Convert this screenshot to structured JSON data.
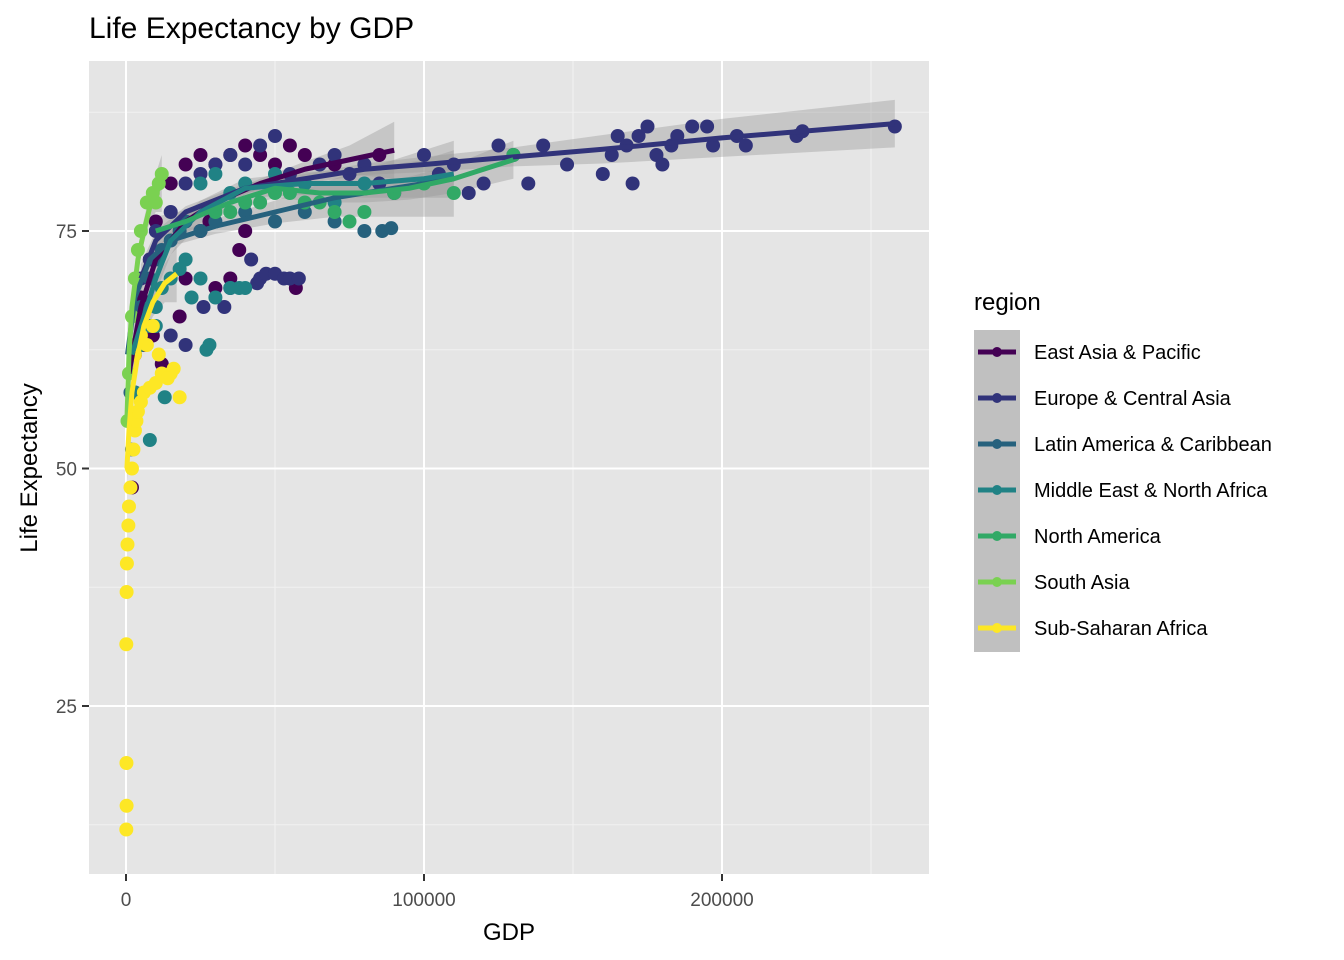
{
  "chart_data": {
    "type": "scatter",
    "title": "Life Expectancy by GDP",
    "xlabel": "GDP",
    "ylabel": "Life Expectancy",
    "xlim": [
      -12000,
      270000
    ],
    "ylim": [
      9,
      92
    ],
    "x_ticks": [
      0,
      100000,
      200000
    ],
    "x_tick_labels": [
      "0",
      "100000",
      "200000"
    ],
    "y_ticks": [
      25,
      50,
      75
    ],
    "y_tick_labels": [
      "25",
      "50",
      "75"
    ],
    "grid": true,
    "legend": {
      "title": "region",
      "placement": "right",
      "entries": [
        "East Asia & Pacific",
        "Europe & Central Asia",
        "Latin America & Caribbean",
        "Middle East & North Africa",
        "North America",
        "South Asia",
        "Sub-Saharan Africa"
      ]
    },
    "series": [
      {
        "name": "East Asia & Pacific",
        "color": "#440154",
        "points": [
          [
            2000,
            55
          ],
          [
            3000,
            62
          ],
          [
            5000,
            68
          ],
          [
            8000,
            72
          ],
          [
            10000,
            76
          ],
          [
            15000,
            80
          ],
          [
            20000,
            82
          ],
          [
            25000,
            83
          ],
          [
            30000,
            82
          ],
          [
            35000,
            83
          ],
          [
            40000,
            84
          ],
          [
            45000,
            83
          ],
          [
            50000,
            82
          ],
          [
            55000,
            84
          ],
          [
            60000,
            83
          ],
          [
            12000,
            61
          ],
          [
            18000,
            66
          ],
          [
            20000,
            70
          ],
          [
            30000,
            69
          ],
          [
            35000,
            70
          ],
          [
            38000,
            73
          ],
          [
            40000,
            75
          ],
          [
            25000,
            75
          ],
          [
            28000,
            76
          ],
          [
            57000,
            69
          ],
          [
            2000,
            48
          ],
          [
            3000,
            58
          ],
          [
            6000,
            63
          ],
          [
            9000,
            64
          ],
          [
            70000,
            82
          ],
          [
            85000,
            83
          ]
        ],
        "smooth": [
          [
            1000,
            60
          ],
          [
            5000,
            67
          ],
          [
            10000,
            72
          ],
          [
            20000,
            76
          ],
          [
            30000,
            78
          ],
          [
            45000,
            80
          ],
          [
            60000,
            81.5
          ],
          [
            75000,
            82.5
          ],
          [
            90000,
            83.5
          ]
        ],
        "band_halfwidth": [
          2,
          1.5,
          1,
          0.6,
          0.5,
          0.5,
          0.8,
          1.5,
          3
        ]
      },
      {
        "name": "Europe & Central Asia",
        "color": "#31337a",
        "points": [
          [
            5000,
            70
          ],
          [
            8000,
            72
          ],
          [
            10000,
            75
          ],
          [
            15000,
            77
          ],
          [
            20000,
            80
          ],
          [
            25000,
            81
          ],
          [
            30000,
            82
          ],
          [
            35000,
            83
          ],
          [
            40000,
            82
          ],
          [
            45000,
            84
          ],
          [
            50000,
            85
          ],
          [
            55000,
            81
          ],
          [
            60000,
            80
          ],
          [
            65000,
            82
          ],
          [
            70000,
            83
          ],
          [
            75000,
            81
          ],
          [
            80000,
            82
          ],
          [
            85000,
            80
          ],
          [
            90000,
            79
          ],
          [
            100000,
            83
          ],
          [
            105000,
            81
          ],
          [
            110000,
            82
          ],
          [
            115000,
            79
          ],
          [
            120000,
            80
          ],
          [
            125000,
            84
          ],
          [
            130000,
            83
          ],
          [
            135000,
            80
          ],
          [
            140000,
            84
          ],
          [
            148000,
            82
          ],
          [
            160000,
            81
          ],
          [
            163000,
            83
          ],
          [
            165000,
            85
          ],
          [
            168000,
            84
          ],
          [
            170000,
            80
          ],
          [
            172000,
            85
          ],
          [
            175000,
            86
          ],
          [
            178000,
            83
          ],
          [
            180000,
            82
          ],
          [
            183000,
            84
          ],
          [
            185000,
            85
          ],
          [
            190000,
            86
          ],
          [
            195000,
            86
          ],
          [
            197000,
            84
          ],
          [
            205000,
            85
          ],
          [
            208000,
            84
          ],
          [
            225000,
            85
          ],
          [
            227000,
            85.5
          ],
          [
            258000,
            86
          ],
          [
            44000,
            69.5
          ],
          [
            45000,
            70
          ],
          [
            47000,
            70.5
          ],
          [
            50000,
            70.5
          ],
          [
            53000,
            70
          ],
          [
            55000,
            70
          ],
          [
            58000,
            70
          ],
          [
            35000,
            69
          ],
          [
            33000,
            67
          ],
          [
            26000,
            67
          ],
          [
            42000,
            72
          ],
          [
            20000,
            63
          ],
          [
            15000,
            64
          ]
        ],
        "smooth": [
          [
            5000,
            70
          ],
          [
            10000,
            74
          ],
          [
            20000,
            77
          ],
          [
            40000,
            79.5
          ],
          [
            60000,
            80.5
          ],
          [
            80000,
            81.5
          ],
          [
            100000,
            82
          ],
          [
            130000,
            82.8
          ],
          [
            160000,
            83.6
          ],
          [
            200000,
            84.8
          ],
          [
            258000,
            86.3
          ]
        ],
        "band_halfwidth": [
          1.5,
          1,
          0.6,
          0.5,
          0.5,
          0.6,
          0.8,
          1,
          1.5,
          2,
          2.5
        ]
      },
      {
        "name": "Latin America & Caribbean",
        "color": "#26617d",
        "points": [
          [
            1500,
            58
          ],
          [
            3000,
            63
          ],
          [
            5000,
            67
          ],
          [
            8000,
            70
          ],
          [
            10000,
            72
          ],
          [
            12000,
            73
          ],
          [
            15000,
            74
          ],
          [
            18000,
            75
          ],
          [
            20000,
            76
          ],
          [
            25000,
            75
          ],
          [
            30000,
            76
          ],
          [
            40000,
            77
          ],
          [
            50000,
            76
          ],
          [
            60000,
            77
          ],
          [
            70000,
            76
          ],
          [
            80000,
            75
          ],
          [
            86000,
            75
          ],
          [
            89000,
            75.3
          ],
          [
            2000,
            52
          ]
        ],
        "smooth": [
          [
            500,
            62
          ],
          [
            3000,
            68
          ],
          [
            8000,
            72
          ],
          [
            15000,
            74
          ],
          [
            30000,
            75.5
          ],
          [
            50000,
            77
          ],
          [
            70000,
            78.5
          ],
          [
            90000,
            79.5
          ],
          [
            110000,
            80.5
          ]
        ],
        "band_halfwidth": [
          2,
          1.2,
          0.8,
          0.6,
          0.8,
          1.2,
          2,
          3,
          4
        ]
      },
      {
        "name": "Middle East & North Africa",
        "color": "#208285",
        "points": [
          [
            3000,
            58
          ],
          [
            5000,
            63
          ],
          [
            8000,
            65
          ],
          [
            10000,
            67
          ],
          [
            12000,
            69
          ],
          [
            15000,
            70
          ],
          [
            18000,
            71
          ],
          [
            20000,
            72
          ],
          [
            22000,
            68
          ],
          [
            25000,
            70
          ],
          [
            28000,
            63
          ],
          [
            27000,
            62.5
          ],
          [
            30000,
            68
          ],
          [
            35000,
            69
          ],
          [
            38000,
            69
          ],
          [
            40000,
            69
          ],
          [
            13000,
            57.5
          ],
          [
            8000,
            53
          ],
          [
            10000,
            65
          ],
          [
            25000,
            80
          ],
          [
            30000,
            81
          ],
          [
            35000,
            79
          ],
          [
            40000,
            80
          ],
          [
            50000,
            81
          ],
          [
            60000,
            80
          ],
          [
            70000,
            78
          ],
          [
            80000,
            80
          ]
        ],
        "smooth": [
          [
            2000,
            62
          ],
          [
            6000,
            66
          ],
          [
            10000,
            70
          ],
          [
            15000,
            74
          ],
          [
            25000,
            77
          ],
          [
            40000,
            79.5
          ],
          [
            60000,
            80
          ],
          [
            80000,
            80
          ],
          [
            100000,
            80.5
          ],
          [
            110000,
            81
          ]
        ],
        "band_halfwidth": [
          3,
          2,
          1.5,
          1.5,
          1.2,
          1,
          1.2,
          1.5,
          2,
          2.5
        ]
      },
      {
        "name": "North America",
        "color": "#31a966",
        "points": [
          [
            30000,
            77
          ],
          [
            35000,
            77
          ],
          [
            40000,
            78
          ],
          [
            45000,
            78
          ],
          [
            50000,
            79
          ],
          [
            55000,
            79
          ],
          [
            60000,
            78
          ],
          [
            65000,
            78
          ],
          [
            70000,
            77
          ],
          [
            75000,
            76
          ],
          [
            80000,
            77
          ],
          [
            90000,
            79
          ],
          [
            100000,
            80
          ],
          [
            110000,
            79
          ],
          [
            130000,
            83
          ]
        ],
        "smooth": [
          [
            10000,
            75
          ],
          [
            20000,
            76
          ],
          [
            35000,
            78
          ],
          [
            50000,
            79.5
          ],
          [
            65000,
            79
          ],
          [
            80000,
            79
          ],
          [
            95000,
            79.5
          ],
          [
            110000,
            80.5
          ],
          [
            130000,
            82.5
          ]
        ],
        "band_halfwidth": [
          1.5,
          1.2,
          1,
          1,
          1,
          1,
          1.2,
          1.5,
          2
        ]
      },
      {
        "name": "South Asia",
        "color": "#7ad151",
        "points": [
          [
            500,
            55
          ],
          [
            1000,
            60
          ],
          [
            2000,
            66
          ],
          [
            3000,
            70
          ],
          [
            4000,
            73
          ],
          [
            5000,
            75
          ],
          [
            7000,
            78
          ],
          [
            9000,
            79
          ],
          [
            11000,
            80
          ],
          [
            12000,
            81
          ],
          [
            10000,
            78
          ]
        ],
        "smooth": [
          [
            300,
            55
          ],
          [
            1000,
            62
          ],
          [
            2000,
            67
          ],
          [
            4000,
            72
          ],
          [
            6000,
            75
          ],
          [
            8000,
            77.5
          ],
          [
            10000,
            79
          ],
          [
            12000,
            80
          ]
        ],
        "band_halfwidth": [
          1.5,
          1,
          1,
          1,
          1.2,
          1.5,
          2,
          3
        ]
      },
      {
        "name": "Sub-Saharan Africa",
        "color": "#fde725",
        "points": [
          [
            100,
            12
          ],
          [
            200,
            14.5
          ],
          [
            150,
            19
          ],
          [
            100,
            31.5
          ],
          [
            200,
            37
          ],
          [
            300,
            40
          ],
          [
            500,
            42
          ],
          [
            800,
            44
          ],
          [
            1000,
            46
          ],
          [
            1500,
            48
          ],
          [
            2000,
            50
          ],
          [
            2500,
            52
          ],
          [
            3000,
            54
          ],
          [
            3500,
            55
          ],
          [
            4000,
            56
          ],
          [
            5000,
            57
          ],
          [
            6000,
            58
          ],
          [
            8000,
            58.5
          ],
          [
            10000,
            59
          ],
          [
            12000,
            60
          ],
          [
            15000,
            60
          ],
          [
            18000,
            57.5
          ],
          [
            16000,
            60.5
          ],
          [
            14000,
            59.5
          ],
          [
            3000,
            62
          ],
          [
            5000,
            64
          ],
          [
            7000,
            63
          ],
          [
            9000,
            65
          ],
          [
            11000,
            62
          ]
        ],
        "smooth": [
          [
            300,
            50
          ],
          [
            1000,
            54
          ],
          [
            2000,
            58
          ],
          [
            4000,
            62
          ],
          [
            6000,
            65
          ],
          [
            9000,
            67.5
          ],
          [
            13000,
            69.5
          ],
          [
            17000,
            70.5
          ]
        ],
        "band_halfwidth": [
          1.5,
          1,
          1,
          1,
          1.2,
          1.5,
          2,
          3
        ]
      }
    ]
  }
}
